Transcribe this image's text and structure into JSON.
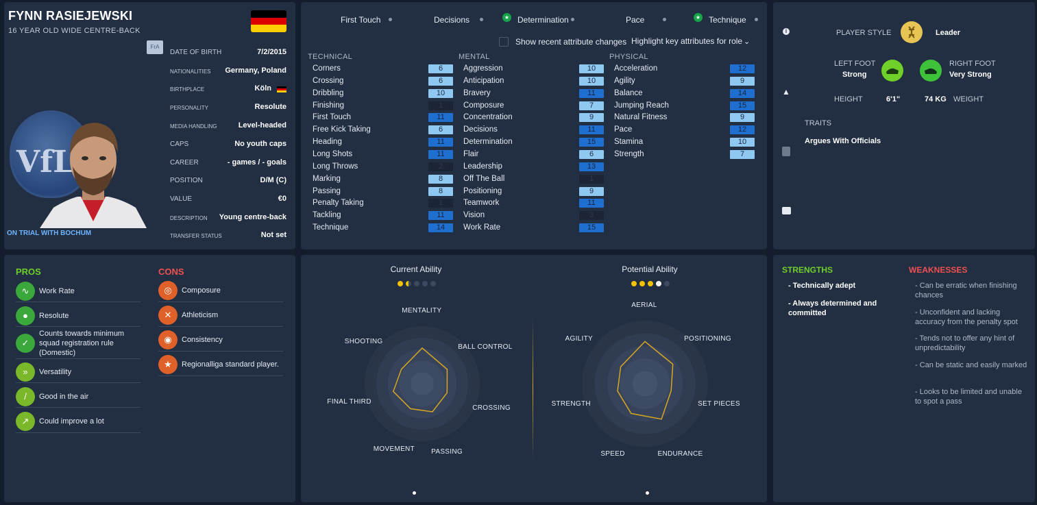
{
  "profile": {
    "name": "FYNN RASIEJEWSKI",
    "subtitle": "16 YEAR OLD WIDE CENTRE-BACK",
    "club_crest_text": "VfL",
    "fra_badge": "FrA",
    "trial_text": "ON TRIAL WITH BOCHUM",
    "flag_colors": [
      "#000000",
      "#dd0000",
      "#ffce00"
    ],
    "details": [
      {
        "label": "DATE OF BIRTH",
        "value": "7/2/2015"
      },
      {
        "label": "NATIONALITIES",
        "value": "Germany, Poland"
      },
      {
        "label": "BIRTHPLACE",
        "value": "Köln"
      },
      {
        "label": "PERSONALITY",
        "value": "Resolute"
      },
      {
        "label": "MEDIA HANDLING",
        "value": "Level-headed"
      },
      {
        "label": "CAPS",
        "value": "No youth caps"
      },
      {
        "label": "CAREER",
        "value": "- games / - goals"
      },
      {
        "label": "POSITION",
        "value": "D/M (C)"
      },
      {
        "label": "VALUE",
        "value": "€0"
      },
      {
        "label": "DESCRIPTION",
        "value": "Young centre-back"
      },
      {
        "label": "TRANSFER STATUS",
        "value": "Not set"
      }
    ]
  },
  "attributes": {
    "key_attributes": [
      {
        "label": "First Touch",
        "starred": false
      },
      {
        "label": "Decisions",
        "starred": false
      },
      {
        "label": "Determination",
        "starred": true
      },
      {
        "label": "Pace",
        "starred": false
      },
      {
        "label": "Technique",
        "starred": true
      }
    ],
    "show_recent_label": "Show recent attribute changes",
    "highlight_label": "Highlight key attributes for role",
    "technical_title": "TECHNICAL",
    "mental_title": "MENTAL",
    "physical_title": "PHYSICAL",
    "technical": [
      {
        "name": "Corners",
        "value": "6"
      },
      {
        "name": "Crossing",
        "value": "6"
      },
      {
        "name": "Dribbling",
        "value": "10"
      },
      {
        "name": "Finishing",
        "value": "1"
      },
      {
        "name": "First Touch",
        "value": "11"
      },
      {
        "name": "Free Kick Taking",
        "value": "6"
      },
      {
        "name": "Heading",
        "value": "11"
      },
      {
        "name": "Long Shots",
        "value": "11"
      },
      {
        "name": "Long Throws",
        "value": "2"
      },
      {
        "name": "Marking",
        "value": "8"
      },
      {
        "name": "Passing",
        "value": "8"
      },
      {
        "name": "Penalty Taking",
        "value": "1"
      },
      {
        "name": "Tackling",
        "value": "11"
      },
      {
        "name": "Technique",
        "value": "14"
      }
    ],
    "mental": [
      {
        "name": "Aggression",
        "value": "10"
      },
      {
        "name": "Anticipation",
        "value": "10"
      },
      {
        "name": "Bravery",
        "value": "11"
      },
      {
        "name": "Composure",
        "value": "7"
      },
      {
        "name": "Concentration",
        "value": "9"
      },
      {
        "name": "Decisions",
        "value": "11"
      },
      {
        "name": "Determination",
        "value": "15"
      },
      {
        "name": "Flair",
        "value": "6"
      },
      {
        "name": "Leadership",
        "value": "13"
      },
      {
        "name": "Off The Ball",
        "value": "1"
      },
      {
        "name": "Positioning",
        "value": "9"
      },
      {
        "name": "Teamwork",
        "value": "11"
      },
      {
        "name": "Vision",
        "value": "3"
      },
      {
        "name": "Work Rate",
        "value": "15"
      }
    ],
    "physical": [
      {
        "name": "Acceleration",
        "value": "12"
      },
      {
        "name": "Agility",
        "value": "9"
      },
      {
        "name": "Balance",
        "value": "14"
      },
      {
        "name": "Jumping Reach",
        "value": "15"
      },
      {
        "name": "Natural Fitness",
        "value": "9"
      },
      {
        "name": "Pace",
        "value": "12"
      },
      {
        "name": "Stamina",
        "value": "10"
      },
      {
        "name": "Strength",
        "value": "7"
      }
    ]
  },
  "style": {
    "player_style_label": "PLAYER STYLE",
    "player_style_value": "Leader",
    "left_foot_label": "LEFT FOOT",
    "left_foot_value": "Strong",
    "right_foot_label": "RIGHT FOOT",
    "right_foot_value": "Very Strong",
    "height_label": "HEIGHT",
    "height_value": "6'1\"",
    "weight_value": "74 KG",
    "weight_label": "WEIGHT",
    "traits_label": "TRAITS",
    "traits": [
      "Argues With Officials"
    ]
  },
  "pros_cons": {
    "pros_title": "PROS",
    "cons_title": "CONS",
    "pros": [
      {
        "text": "Work Rate",
        "icon": "heartbeat-icon"
      },
      {
        "text": "Resolute",
        "icon": "head-icon"
      },
      {
        "text": "Counts towards minimum squad registration rule (Domestic)",
        "icon": "registration-icon"
      },
      {
        "text": "Versatility",
        "icon": "versatility-icon"
      },
      {
        "text": "Good in the air",
        "icon": "aerial-icon"
      },
      {
        "text": "Could improve a lot",
        "icon": "trend-up-icon"
      }
    ],
    "cons": [
      {
        "text": "Composure",
        "icon": "composure-icon"
      },
      {
        "text": "Athleticism",
        "icon": "athleticism-icon"
      },
      {
        "text": "Consistency",
        "icon": "target-icon"
      },
      {
        "text": "Regionalliga standard player.",
        "icon": "star-icon"
      }
    ]
  },
  "abilities": {
    "current_title": "Current Ability",
    "potential_title": "Potential Ability",
    "current_stars": 1.5,
    "potential_stars": 4,
    "left_radar": {
      "labels": [
        "MENTALITY",
        "BALL CONTROL",
        "CROSSING",
        "PASSING",
        "MOVEMENT",
        "FINAL THIRD",
        "SHOOTING"
      ],
      "values": [
        0.62,
        0.5,
        0.46,
        0.52,
        0.48,
        0.52,
        0.44
      ]
    },
    "right_radar": {
      "labels": [
        "AERIAL",
        "POSITIONING",
        "SET PIECES",
        "ENDURANCE",
        "SPEED",
        "STRENGTH",
        "AGILITY"
      ],
      "values": [
        0.67,
        0.54,
        0.43,
        0.62,
        0.52,
        0.45,
        0.47
      ]
    }
  },
  "strengths_weaknesses": {
    "strengths_title": "STRENGTHS",
    "weaknesses_title": "WEAKNESSES",
    "strengths": [
      "- Technically adept",
      "- Always determined and committed"
    ],
    "weaknesses": [
      "- Can be erratic when finishing chances",
      "- Unconfident and lacking accuracy from the penalty spot",
      "- Tends not to offer any hint of unpredictability",
      "- Can be static and easily marked",
      "- Looks to be limited and unable to spot a pass"
    ]
  },
  "colors": {
    "panel": "#222e42",
    "pros_green": "#6fd02a",
    "cons_red": "#f05050",
    "cons_icon": "#e0602a",
    "radar_line": "#d8a820",
    "star_gold": "#f2c200"
  }
}
